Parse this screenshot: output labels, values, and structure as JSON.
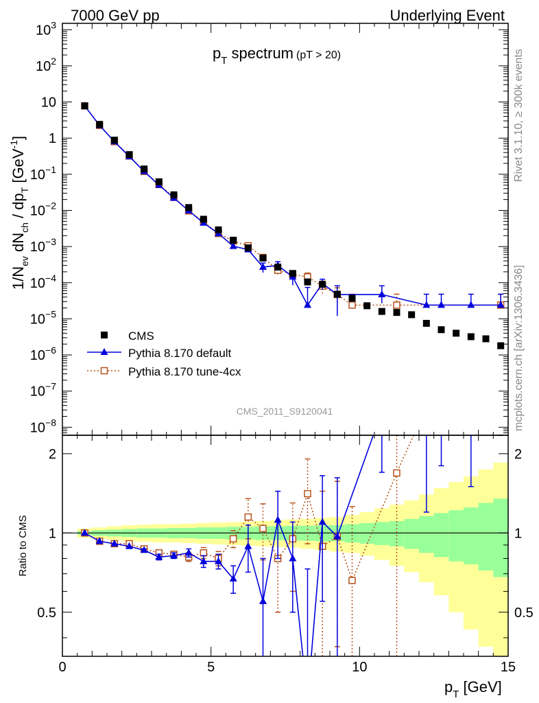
{
  "header": {
    "left": "7000 GeV pp",
    "right": "Underlying Event"
  },
  "side": {
    "rivet": "Rivet 3.1.10, ≥ 300k events",
    "mcplots": "mcplots.cern.ch [arXiv:1306.3436]"
  },
  "chart_data": {
    "type": "scatter",
    "title": "p",
    "title_sub": "T",
    "title_main": " spectrum",
    "title_note": "(pT > 20)",
    "watermark": "CMS_2011_S9120041",
    "xlabel": "p",
    "xlabel_sub": "T",
    "xlabel_unit": " [GeV]",
    "ylabel_ratio": "Ratio to CMS",
    "xlim": [
      0,
      15
    ],
    "ylim_main": [
      6e-09,
      1500
    ],
    "ylim_ratio": [
      0.34,
      2.35
    ],
    "log_y_main": true,
    "log_y_ratio": true,
    "legend_placement": "lower-left",
    "xticks": [
      "0",
      "5",
      "10",
      "15"
    ],
    "main_yticks": [
      {
        "v": 1000.0,
        "m": "10",
        "e": "3"
      },
      {
        "v": 100.0,
        "m": "10",
        "e": "2"
      },
      {
        "v": 10,
        "m": "10",
        "e": ""
      },
      {
        "v": 1,
        "m": "1",
        "e": ""
      },
      {
        "v": 0.1,
        "m": "10",
        "e": "−1"
      },
      {
        "v": 0.01,
        "m": "10",
        "e": "−2"
      },
      {
        "v": 0.001,
        "m": "10",
        "e": "−3"
      },
      {
        "v": 0.0001,
        "m": "10",
        "e": "−4"
      },
      {
        "v": 1e-05,
        "m": "10",
        "e": "−5"
      },
      {
        "v": 1e-06,
        "m": "10",
        "e": "−6"
      },
      {
        "v": 1e-07,
        "m": "10",
        "e": "−7"
      },
      {
        "v": 1e-08,
        "m": "10",
        "e": "−8"
      }
    ],
    "ratio_yticks": [
      {
        "v": 0.5,
        "label": "0.5"
      },
      {
        "v": 1,
        "label": "1"
      },
      {
        "v": 2,
        "label": "2"
      }
    ],
    "ylabel_main_parts": [
      "1/N",
      "ev",
      " dN",
      "ch",
      " / dp",
      "T",
      " [GeV",
      "-1",
      "]"
    ],
    "x": [
      0.75,
      1.25,
      1.75,
      2.25,
      2.75,
      3.25,
      3.75,
      4.25,
      4.75,
      5.25,
      5.75,
      6.25,
      6.75,
      7.25,
      7.75,
      8.25,
      8.75,
      9.25,
      9.75,
      10.25,
      10.75,
      11.25,
      11.75,
      12.25,
      12.75,
      13.25,
      13.75,
      14.25,
      14.75
    ],
    "series": [
      {
        "name": "CMS",
        "color": "#000000",
        "marker": "square",
        "values": [
          7.8,
          2.4,
          0.88,
          0.35,
          0.14,
          0.062,
          0.027,
          0.012,
          0.0057,
          0.0029,
          0.0015,
          0.00092,
          0.00048,
          0.00027,
          0.00018,
          0.000105,
          9e-05,
          4.8e-05,
          3.7e-05,
          2.3e-05,
          1.6e-05,
          1.5e-05,
          1.3e-05,
          7.5e-06,
          5e-06,
          4e-06,
          3.2e-06,
          2.8e-06,
          1.8e-06
        ],
        "band": {
          "x": [
            0.5,
            1,
            1.5,
            2,
            2.5,
            3,
            3.5,
            4,
            4.5,
            5,
            5.5,
            6,
            6.5,
            7,
            7.5,
            8,
            8.5,
            9,
            9.5,
            10,
            10.5,
            11,
            11.5,
            12,
            12.5,
            13,
            13.5,
            14,
            14.5,
            15
          ],
          "stat_lo": [
            0.985,
            0.975,
            0.97,
            0.965,
            0.96,
            0.96,
            0.955,
            0.955,
            0.95,
            0.95,
            0.945,
            0.945,
            0.94,
            0.94,
            0.935,
            0.935,
            0.93,
            0.93,
            0.92,
            0.91,
            0.9,
            0.89,
            0.87,
            0.84,
            0.81,
            0.78,
            0.76,
            0.72,
            0.68
          ],
          "stat_hi": [
            1.015,
            1.025,
            1.03,
            1.035,
            1.04,
            1.04,
            1.045,
            1.045,
            1.05,
            1.05,
            1.055,
            1.055,
            1.06,
            1.06,
            1.065,
            1.065,
            1.07,
            1.07,
            1.08,
            1.09,
            1.1,
            1.11,
            1.13,
            1.16,
            1.19,
            1.22,
            1.25,
            1.3,
            1.35
          ],
          "tot_lo": [
            0.96,
            0.95,
            0.94,
            0.93,
            0.925,
            0.92,
            0.92,
            0.915,
            0.91,
            0.905,
            0.9,
            0.895,
            0.89,
            0.885,
            0.88,
            0.87,
            0.86,
            0.85,
            0.84,
            0.82,
            0.79,
            0.75,
            0.71,
            0.65,
            0.58,
            0.5,
            0.43,
            0.37,
            0.34
          ],
          "tot_hi": [
            1.04,
            1.05,
            1.06,
            1.07,
            1.075,
            1.08,
            1.08,
            1.085,
            1.09,
            1.095,
            1.1,
            1.105,
            1.11,
            1.12,
            1.125,
            1.13,
            1.14,
            1.15,
            1.17,
            1.2,
            1.24,
            1.28,
            1.33,
            1.4,
            1.48,
            1.56,
            1.64,
            1.74,
            1.85
          ]
        }
      },
      {
        "name": "Pythia 8.170 default",
        "color": "#0000dd",
        "marker": "triangle",
        "values": [
          7.8,
          2.25,
          0.8,
          0.31,
          0.12,
          0.05,
          0.022,
          0.0098,
          0.0045,
          0.0023,
          0.00102,
          0.00082,
          0.00027,
          0.0003,
          0.000145,
          2.4e-05,
          9.5e-05,
          4.7e-05,
          null,
          null,
          4.7e-05,
          null,
          null,
          2.4e-05,
          2.4e-05,
          null,
          2.4e-05,
          null,
          2.4e-05
        ],
        "err_lo": [
          null,
          null,
          null,
          null,
          null,
          null,
          null,
          null,
          null,
          null,
          null,
          null,
          8e-05,
          8e-05,
          6e-05,
          1e-09,
          3e-05,
          3.5e-05,
          null,
          null,
          2e-05,
          null,
          null,
          1e-09,
          1e-09,
          null,
          1e-09,
          null,
          1e-09
        ],
        "err_hi": [
          null,
          null,
          null,
          null,
          null,
          null,
          null,
          null,
          null,
          null,
          null,
          null,
          8e-05,
          8e-05,
          6e-05,
          5e-05,
          3e-05,
          3.5e-05,
          null,
          null,
          3.5e-05,
          null,
          null,
          2.4e-05,
          2.4e-05,
          null,
          2.4e-05,
          null,
          2.4e-05
        ],
        "ratio": [
          1.0,
          0.93,
          0.91,
          0.89,
          0.86,
          0.81,
          0.82,
          0.84,
          0.78,
          0.78,
          0.67,
          0.89,
          0.55,
          1.12,
          0.8,
          0.23,
          1.1,
          0.97,
          null,
          null,
          2.9,
          null,
          null,
          3.2,
          4.8,
          null,
          7.5,
          null,
          13
        ],
        "ratio_err": [
          0,
          0,
          0,
          0,
          0.01,
          0.02,
          0.02,
          0.03,
          0.04,
          0.05,
          0.08,
          0.18,
          0.25,
          0.32,
          0.3,
          0.5,
          0.55,
          0.65,
          null,
          null,
          1.2,
          null,
          null,
          2,
          3,
          null,
          6,
          null,
          10
        ]
      },
      {
        "name": "Pythia 8.170 tune-4cx",
        "color": "#b5511b",
        "marker": "open-square",
        "values": [
          7.8,
          2.25,
          0.8,
          0.32,
          0.12,
          0.052,
          0.023,
          0.0097,
          0.0048,
          0.0023,
          0.00142,
          0.00105,
          0.0005,
          0.00022,
          0.00017,
          0.000145,
          8e-05,
          4.7e-05,
          2.4e-05,
          null,
          null,
          2.4e-05,
          null,
          null,
          null,
          null,
          null,
          null,
          2.4e-05
        ],
        "err_lo": [
          null,
          null,
          null,
          null,
          null,
          null,
          null,
          null,
          null,
          null,
          null,
          null,
          0.0001,
          5e-05,
          4e-05,
          4e-05,
          3e-05,
          2.5e-05,
          1e-09,
          null,
          null,
          1e-09,
          null,
          null,
          null,
          null,
          null,
          null,
          1e-09
        ],
        "err_hi": [
          null,
          null,
          null,
          null,
          null,
          null,
          null,
          null,
          null,
          null,
          null,
          null,
          0.0001,
          5e-05,
          4e-05,
          4e-05,
          3e-05,
          2.5e-05,
          2.4e-05,
          null,
          null,
          2.4e-05,
          null,
          null,
          null,
          null,
          null,
          null,
          2.4e-05
        ],
        "ratio": [
          1.0,
          0.93,
          0.91,
          0.91,
          0.87,
          0.84,
          0.83,
          0.81,
          0.84,
          0.8,
          0.95,
          1.15,
          1.04,
          0.8,
          0.95,
          1.41,
          0.89,
          0.97,
          0.66,
          null,
          null,
          1.69,
          null,
          null,
          null,
          null,
          null,
          null,
          13
        ],
        "ratio_err": [
          0,
          0,
          0,
          0,
          0.01,
          0.02,
          0.02,
          0.03,
          0.04,
          0.05,
          0.07,
          0.2,
          0.25,
          0.3,
          0.35,
          0.5,
          0.55,
          0.6,
          0.6,
          null,
          null,
          1.5,
          null,
          null,
          null,
          null,
          null,
          null,
          10
        ]
      }
    ]
  }
}
